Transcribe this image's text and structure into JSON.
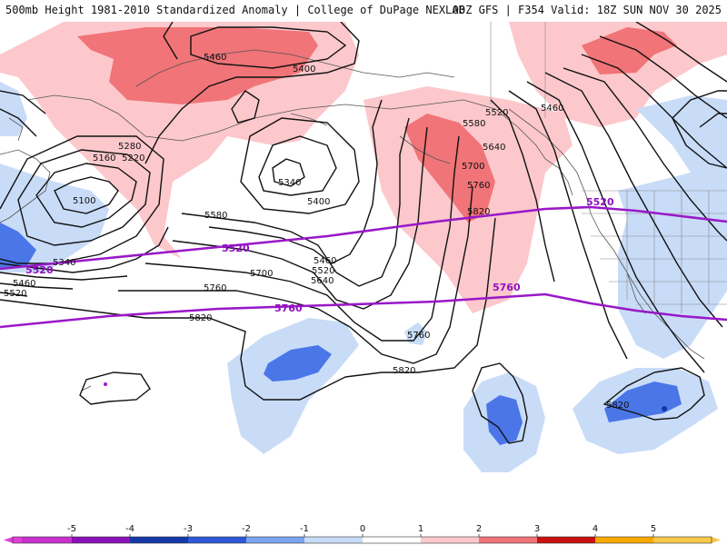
{
  "title": {
    "left": "500mb Height 1981-2010 Standardized Anomaly | College of DuPage NEXLAB",
    "right": "00Z GFS | F354 Valid: 18Z SUN NOV 30 2025"
  },
  "colors": {
    "anom_pos1": "#fcc8cc",
    "anom_pos2": "#f07478",
    "anom_neg1": "#c8dcf8",
    "anom_neg2": "#4a76e8",
    "contour": "#111111",
    "purple": "#9a18c8",
    "coast": "#555555",
    "state": "#888888"
  },
  "contour_labels": [
    {
      "id": "5460-nw",
      "text": "5460"
    },
    {
      "id": "5400-n",
      "text": "5400"
    },
    {
      "id": "5280-w",
      "text": "5280"
    },
    {
      "id": "5220-w",
      "text": "5220"
    },
    {
      "id": "5160-w",
      "text": "5160"
    },
    {
      "id": "5100-w",
      "text": "5100"
    },
    {
      "id": "5340-low",
      "text": "5340"
    },
    {
      "id": "5400-mid",
      "text": "5400"
    },
    {
      "id": "5580-mid",
      "text": "5580"
    },
    {
      "id": "5460-gulf",
      "text": "5460"
    },
    {
      "id": "5520-gulf",
      "text": "5520"
    },
    {
      "id": "5640-gulf",
      "text": "5640"
    },
    {
      "id": "5700-mid",
      "text": "5700"
    },
    {
      "id": "5760-mid",
      "text": "5760"
    },
    {
      "id": "5820-mid",
      "text": "5820"
    },
    {
      "id": "5340-lw",
      "text": "5340"
    },
    {
      "id": "5460-lw",
      "text": "5460"
    },
    {
      "id": "5520-lw",
      "text": "5520"
    },
    {
      "id": "5760-pac",
      "text": "5760"
    },
    {
      "id": "5820-pac",
      "text": "5820"
    },
    {
      "id": "5820-se",
      "text": "5820"
    },
    {
      "id": "5520-ne",
      "text": "5520"
    },
    {
      "id": "5580-ridge",
      "text": "5580"
    },
    {
      "id": "5640-ridge",
      "text": "5640"
    },
    {
      "id": "5700-ridge",
      "text": "5700"
    },
    {
      "id": "5760-ridge",
      "text": "5760"
    },
    {
      "id": "5820-ridge",
      "text": "5820"
    },
    {
      "id": "5460-ne",
      "text": "5460"
    }
  ],
  "climo_labels": [
    {
      "id": "p5520-w",
      "text": "5520"
    },
    {
      "id": "p5520-mid",
      "text": "5520"
    },
    {
      "id": "p5520-e",
      "text": "5520"
    },
    {
      "id": "p5760-mid",
      "text": "5760"
    },
    {
      "id": "p5760-e",
      "text": "5760"
    }
  ],
  "colorbar": {
    "ticks": [
      "-5",
      "-4",
      "-3",
      "-2",
      "-1",
      "0",
      "1",
      "2",
      "3",
      "4",
      "5"
    ],
    "colors": [
      "#e040d8",
      "#8a10b8",
      "#1438a8",
      "#2c58d8",
      "#5a86e8",
      "#c8dcf8",
      "#ffffff",
      "#fcc8cc",
      "#f07478",
      "#d81818",
      "#a00808",
      "#f8a800",
      "#f8c040"
    ]
  }
}
